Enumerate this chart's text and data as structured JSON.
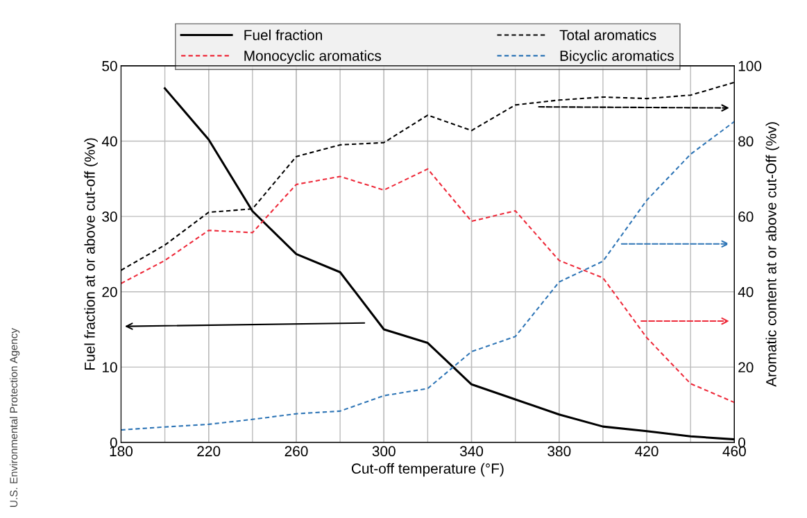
{
  "chart_data": {
    "type": "line",
    "xlabel": "Cut-off temperature (°F)",
    "ylabel": "Fuel fraction at or above cut-off (%v)",
    "y2label": "Aromatic content at or above cut-Off (%v)",
    "annotations": [
      "U.S. Environmental Protection Agency"
    ],
    "x": [
      180,
      200,
      220,
      240,
      260,
      280,
      300,
      320,
      340,
      360,
      380,
      400,
      420,
      440,
      460
    ],
    "xlim": [
      180,
      460
    ],
    "xticks": [
      180,
      220,
      260,
      300,
      340,
      380,
      420,
      460
    ],
    "ylim": [
      0,
      50
    ],
    "yticks": [
      0,
      10,
      20,
      30,
      40,
      50
    ],
    "y2lim": [
      0,
      100
    ],
    "y2ticks": [
      0,
      20,
      40,
      60,
      80,
      100
    ],
    "grid": true,
    "legend": "top",
    "marker": "none",
    "series": [
      {
        "name": "Fuel fraction",
        "color": "#000000",
        "line_style": "solid",
        "values": [
          null,
          47,
          40.2,
          30.7,
          25,
          22.6,
          15,
          13.2,
          7.7,
          5.7,
          3.7,
          2.1,
          1.5,
          0.8,
          0.4
        ]
      },
      {
        "name": "Monocyclic aromatics",
        "color": "#ee2a3a",
        "line_style": "dashed",
        "axis": "y2",
        "values": [
          42.2,
          48.3,
          56.3,
          55.7,
          68.5,
          70.6,
          67,
          72.6,
          58.7,
          61.5,
          48.3,
          43.7,
          27.8,
          15.6,
          10.6
        ]
      },
      {
        "name": "Total aromatics",
        "color": "#000000",
        "line_style": "dashed",
        "axis": "y2",
        "values": [
          45.7,
          52.4,
          61.1,
          62,
          75.9,
          79,
          79.6,
          86.9,
          82.8,
          89.6,
          90.9,
          91.7,
          91.3,
          92.2,
          95.6
        ]
      },
      {
        "name": "Bicyclic aromatics",
        "color": "#2e75b6",
        "line_style": "dashed",
        "axis": "y2",
        "values": [
          3.3,
          4.1,
          4.8,
          6.1,
          7.6,
          8.3,
          12.4,
          14.3,
          24.1,
          28.1,
          42.6,
          48.1,
          64.3,
          76.5,
          85.2
        ]
      }
    ]
  }
}
